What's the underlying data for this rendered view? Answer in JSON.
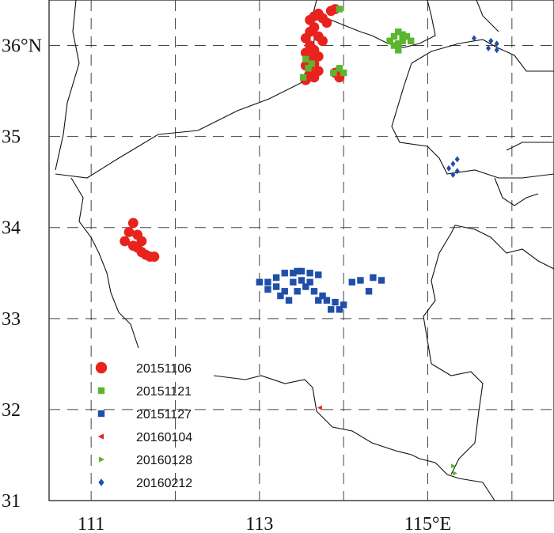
{
  "chart_data": {
    "type": "scatter",
    "xlim": [
      110.5,
      116.5
    ],
    "ylim": [
      31,
      36.5
    ],
    "x_ticks": [
      {
        "value": 111,
        "label": "111"
      },
      {
        "value": 113,
        "label": "113"
      },
      {
        "value": 115,
        "label": "115°E"
      }
    ],
    "y_ticks": [
      {
        "value": 31,
        "label": "31"
      },
      {
        "value": 32,
        "label": "32"
      },
      {
        "value": 33,
        "label": "33"
      },
      {
        "value": 34,
        "label": "34"
      },
      {
        "value": 35,
        "label": "35"
      },
      {
        "value": 36,
        "label": "36°N"
      }
    ],
    "grid": true,
    "legend_position": "bottom-left",
    "series": [
      {
        "name": "20151106",
        "marker": "circle",
        "color": "#e8231e",
        "points": [
          [
            111.5,
            34.05
          ],
          [
            111.45,
            33.95
          ],
          [
            111.55,
            33.92
          ],
          [
            111.4,
            33.85
          ],
          [
            111.6,
            33.85
          ],
          [
            111.5,
            33.8
          ],
          [
            111.55,
            33.78
          ],
          [
            111.6,
            33.73
          ],
          [
            111.65,
            33.7
          ],
          [
            111.7,
            33.68
          ],
          [
            111.75,
            33.68
          ],
          [
            113.55,
            35.62
          ],
          [
            113.6,
            35.7
          ],
          [
            113.65,
            35.65
          ],
          [
            113.55,
            35.78
          ],
          [
            113.6,
            35.85
          ],
          [
            113.55,
            35.92
          ],
          [
            113.6,
            36.0
          ],
          [
            113.55,
            36.08
          ],
          [
            113.6,
            36.15
          ],
          [
            113.65,
            36.2
          ],
          [
            113.6,
            36.28
          ],
          [
            113.65,
            36.32
          ],
          [
            113.7,
            36.35
          ],
          [
            113.75,
            36.3
          ],
          [
            113.8,
            36.25
          ],
          [
            113.85,
            36.38
          ],
          [
            113.9,
            36.4
          ],
          [
            113.7,
            36.1
          ],
          [
            113.75,
            36.05
          ],
          [
            113.65,
            35.95
          ],
          [
            113.7,
            35.88
          ],
          [
            113.65,
            35.8
          ],
          [
            113.7,
            35.72
          ],
          [
            113.9,
            35.7
          ],
          [
            113.95,
            35.65
          ]
        ]
      },
      {
        "name": "20151121",
        "marker": "square",
        "color": "#5bb52f",
        "points": [
          [
            113.52,
            35.65
          ],
          [
            113.58,
            35.75
          ],
          [
            113.55,
            35.85
          ],
          [
            113.62,
            35.8
          ],
          [
            113.95,
            36.4
          ],
          [
            113.88,
            35.7
          ],
          [
            113.95,
            35.75
          ],
          [
            114.0,
            35.7
          ],
          [
            114.6,
            36.1
          ],
          [
            114.65,
            36.15
          ],
          [
            114.7,
            36.05
          ],
          [
            114.75,
            36.1
          ],
          [
            114.6,
            36.0
          ],
          [
            114.65,
            35.95
          ],
          [
            114.55,
            36.05
          ],
          [
            114.7,
            36.12
          ],
          [
            114.8,
            36.05
          ],
          [
            114.65,
            36.02
          ]
        ]
      },
      {
        "name": "20151127",
        "marker": "square",
        "color": "#1f4fa8",
        "points": [
          [
            113.0,
            33.4
          ],
          [
            113.1,
            33.4
          ],
          [
            113.2,
            33.45
          ],
          [
            113.3,
            33.5
          ],
          [
            113.4,
            33.5
          ],
          [
            113.5,
            33.52
          ],
          [
            113.6,
            33.5
          ],
          [
            113.7,
            33.48
          ],
          [
            113.1,
            33.32
          ],
          [
            113.2,
            33.35
          ],
          [
            113.3,
            33.3
          ],
          [
            113.4,
            33.4
          ],
          [
            113.5,
            33.42
          ],
          [
            113.6,
            33.4
          ],
          [
            113.25,
            33.25
          ],
          [
            113.35,
            33.2
          ],
          [
            113.45,
            33.3
          ],
          [
            113.55,
            33.35
          ],
          [
            113.65,
            33.3
          ],
          [
            113.75,
            33.25
          ],
          [
            113.8,
            33.2
          ],
          [
            113.9,
            33.18
          ],
          [
            114.0,
            33.15
          ],
          [
            113.85,
            33.1
          ],
          [
            113.95,
            33.1
          ],
          [
            113.7,
            33.2
          ],
          [
            114.1,
            33.4
          ],
          [
            114.2,
            33.42
          ],
          [
            114.35,
            33.45
          ],
          [
            114.45,
            33.42
          ],
          [
            114.3,
            33.3
          ],
          [
            113.45,
            33.52
          ]
        ]
      },
      {
        "name": "20160104",
        "marker": "triangle-left",
        "color": "#e8231e",
        "points": [
          [
            113.72,
            32.02
          ]
        ]
      },
      {
        "name": "20160128",
        "marker": "triangle-right",
        "color": "#5bb52f",
        "points": [
          [
            115.3,
            31.38
          ],
          [
            115.32,
            31.3
          ]
        ]
      },
      {
        "name": "20160212",
        "marker": "diamond",
        "color": "#1f4fa8",
        "points": [
          [
            115.55,
            36.08
          ],
          [
            115.75,
            36.05
          ],
          [
            115.82,
            36.02
          ],
          [
            115.72,
            35.97
          ],
          [
            115.82,
            35.95
          ],
          [
            115.35,
            34.75
          ],
          [
            115.3,
            34.7
          ],
          [
            115.25,
            34.65
          ],
          [
            115.35,
            34.62
          ],
          [
            115.3,
            34.58
          ]
        ]
      }
    ]
  }
}
